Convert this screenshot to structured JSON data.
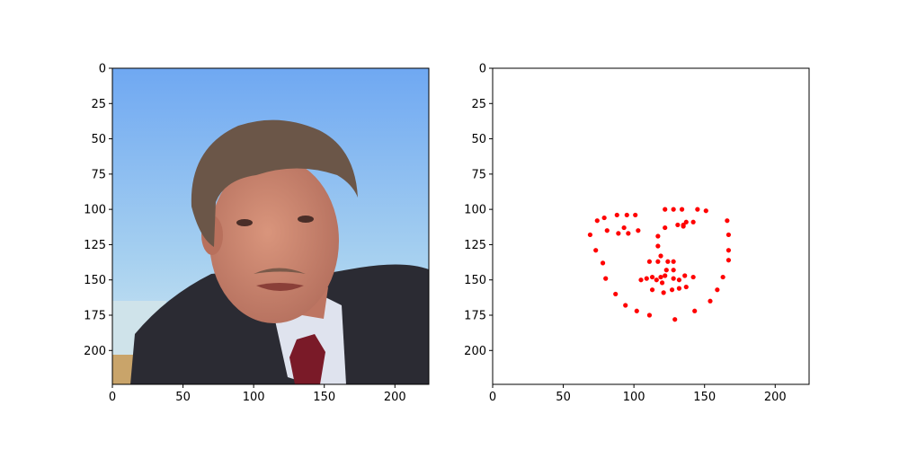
{
  "figure": {
    "panels": [
      {
        "id": "photo",
        "content": "face-photo"
      },
      {
        "id": "landmarks",
        "content": "landmark-scatter"
      }
    ]
  },
  "colors": {
    "marker": "#ff0000",
    "axes": "#000000",
    "background": "#ffffff",
    "sky_top": "#6fa8f2",
    "sky_bottom": "#bfe0f2",
    "suit": "#2b2b33",
    "skin": "#c9826c",
    "hair": "#6b5648",
    "tie": "#7a1a28"
  },
  "chart_data": [
    {
      "type": "image",
      "xlim": [
        0,
        224
      ],
      "ylim": [
        224,
        0
      ],
      "xticks": [
        0,
        50,
        100,
        150,
        200
      ],
      "yticks": [
        0,
        25,
        50,
        75,
        100,
        125,
        150,
        175,
        200
      ],
      "xtick_labels": [
        "0",
        "50",
        "100",
        "150",
        "200"
      ],
      "ytick_labels": [
        "0",
        "25",
        "50",
        "75",
        "100",
        "125",
        "150",
        "175",
        "200"
      ],
      "title": "",
      "xlabel": "",
      "ylabel": ""
    },
    {
      "type": "scatter",
      "xlim": [
        0,
        224
      ],
      "ylim": [
        224,
        0
      ],
      "xticks": [
        0,
        50,
        100,
        150,
        200
      ],
      "yticks": [
        0,
        25,
        50,
        75,
        100,
        125,
        150,
        175,
        200
      ],
      "xtick_labels": [
        "0",
        "50",
        "100",
        "150",
        "200"
      ],
      "ytick_labels": [
        "0",
        "25",
        "50",
        "75",
        "100",
        "125",
        "150",
        "175",
        "200"
      ],
      "title": "",
      "xlabel": "",
      "ylabel": "",
      "marker_color": "#ff0000",
      "points": [
        [
          69,
          118
        ],
        [
          73,
          129
        ],
        [
          78,
          138
        ],
        [
          80,
          149
        ],
        [
          87,
          160
        ],
        [
          94,
          168
        ],
        [
          102,
          172
        ],
        [
          111,
          175
        ],
        [
          129,
          178
        ],
        [
          143,
          172
        ],
        [
          154,
          165
        ],
        [
          159,
          157
        ],
        [
          163,
          148
        ],
        [
          167,
          136
        ],
        [
          167,
          129
        ],
        [
          167,
          118
        ],
        [
          166,
          108
        ],
        [
          74,
          108
        ],
        [
          79,
          106
        ],
        [
          88,
          104
        ],
        [
          95,
          104
        ],
        [
          101,
          104
        ],
        [
          122,
          100
        ],
        [
          128,
          100
        ],
        [
          134,
          100
        ],
        [
          145,
          100
        ],
        [
          151,
          101
        ],
        [
          117,
          119
        ],
        [
          117,
          126
        ],
        [
          119,
          133
        ],
        [
          111,
          137
        ],
        [
          117,
          137
        ],
        [
          124,
          137
        ],
        [
          128,
          137
        ],
        [
          81,
          115
        ],
        [
          89,
          117
        ],
        [
          93,
          113
        ],
        [
          96,
          117
        ],
        [
          103,
          115
        ],
        [
          122,
          113
        ],
        [
          131,
          111
        ],
        [
          135,
          111
        ],
        [
          137,
          109
        ],
        [
          142,
          109
        ],
        [
          135,
          112
        ],
        [
          105,
          150
        ],
        [
          109,
          149
        ],
        [
          113,
          148
        ],
        [
          119,
          148
        ],
        [
          122,
          147
        ],
        [
          123,
          143
        ],
        [
          128,
          143
        ],
        [
          132,
          150
        ],
        [
          137,
          155
        ],
        [
          132,
          156
        ],
        [
          127,
          157
        ],
        [
          121,
          159
        ],
        [
          113,
          157
        ],
        [
          116,
          150
        ],
        [
          120,
          152
        ],
        [
          128,
          149
        ],
        [
          136,
          147
        ],
        [
          142,
          148
        ]
      ]
    }
  ]
}
